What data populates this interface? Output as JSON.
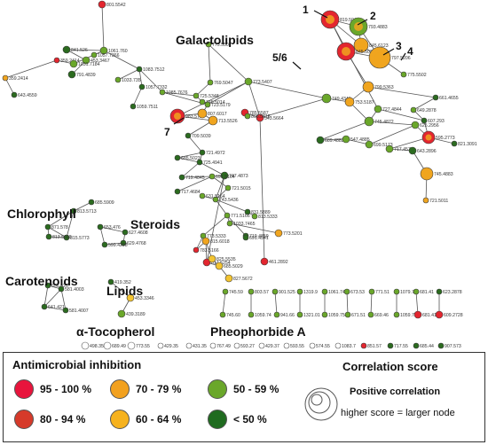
{
  "groups": {
    "galactolipids": "Galactolipids",
    "chlorophyll": "Chlorophyll",
    "steroids": "Steroids",
    "carotenoids": "Carotenoids",
    "lipids": "Lipids",
    "tocopherol": "α-Tocopherol",
    "pheophorbide": "Pheophorbide A"
  },
  "callouts": [
    "1",
    "2",
    "3",
    "4",
    "5/6",
    "7"
  ],
  "nodes": [
    {
      "label": "801.5542",
      "cls": "red"
    },
    {
      "label": "841.526",
      "cls": "dgreen"
    },
    {
      "label": "359.2414",
      "cls": "red"
    },
    {
      "label": "1061.760",
      "cls": "green"
    },
    {
      "label": "1057.7366",
      "cls": "green"
    },
    {
      "label": "453.3467",
      "cls": "green"
    },
    {
      "label": "1031.7184",
      "cls": "green"
    },
    {
      "label": "791.4839",
      "cls": "dgreen"
    },
    {
      "label": "1083.7512",
      "cls": "dgreen"
    },
    {
      "label": "1033.735",
      "cls": "green"
    },
    {
      "label": "359.2414",
      "cls": "orange"
    },
    {
      "label": "643.4559",
      "cls": "dgreen"
    },
    {
      "label": "1057.7332",
      "cls": "dgreen"
    },
    {
      "label": "1059.7511",
      "cls": "dgreen"
    },
    {
      "label": "775.5501",
      "cls": "green"
    },
    {
      "label": "769.5047",
      "cls": "green"
    },
    {
      "label": "1085.7676",
      "cls": "green"
    },
    {
      "label": "725.5348",
      "cls": "green"
    },
    {
      "label": "745.5014",
      "cls": "green"
    },
    {
      "label": "723.5179",
      "cls": "green"
    },
    {
      "label": "773.5407",
      "cls": "green"
    },
    {
      "label": "983.576",
      "cls": "red"
    },
    {
      "label": "807.6017",
      "cls": "orange"
    },
    {
      "label": "713.5526",
      "cls": "orange"
    },
    {
      "label": "709.5039",
      "cls": "dgreen"
    },
    {
      "label": "543.5664",
      "cls": "red"
    },
    {
      "label": "785.5587",
      "cls": "red"
    },
    {
      "label": "805.5815",
      "cls": "green"
    },
    {
      "label": "721.4972",
      "cls": "dgreen"
    },
    {
      "label": "685.5023",
      "cls": "dgreen"
    },
    {
      "label": "725.4941",
      "cls": "dgreen"
    },
    {
      "label": "747.4873",
      "cls": "dgreen"
    },
    {
      "label": "719.4845",
      "cls": "dgreen"
    },
    {
      "label": "691.5164",
      "cls": "green"
    },
    {
      "label": "721.5015",
      "cls": "green"
    },
    {
      "label": "717.4684",
      "cls": "dgreen"
    },
    {
      "label": "743.5436",
      "cls": "green"
    },
    {
      "label": "631.5164",
      "cls": "green"
    },
    {
      "label": "831.5889",
      "cls": "dgreen"
    },
    {
      "label": "813.5333",
      "cls": "green"
    },
    {
      "label": "771.5166",
      "cls": "green"
    },
    {
      "label": "1033.7465",
      "cls": "green"
    },
    {
      "label": "461.2892",
      "cls": "red"
    },
    {
      "label": "773.5201",
      "cls": "orange"
    },
    {
      "label": "719.4859",
      "cls": "dgreen"
    },
    {
      "label": "773.5333",
      "cls": "green"
    },
    {
      "label": "783.5166",
      "cls": "red"
    },
    {
      "label": "815.6018",
      "cls": "orange"
    },
    {
      "label": "817.5254",
      "cls": "red"
    },
    {
      "label": "825.5535",
      "cls": "yellow"
    },
    {
      "label": "685.5029",
      "cls": "yellow"
    },
    {
      "label": "827.5672",
      "cls": "yellow"
    },
    {
      "label": "691.4541",
      "cls": "dgreen"
    },
    {
      "label": "819.5049",
      "cls": "red"
    },
    {
      "label": "793.4883",
      "cls": "green"
    },
    {
      "label": "845.6123",
      "cls": "orange"
    },
    {
      "label": "845.5033",
      "cls": "red"
    },
    {
      "label": "797.5206",
      "cls": "orange"
    },
    {
      "label": "775.5502",
      "cls": "green"
    },
    {
      "label": "799.5363",
      "cls": "orange"
    },
    {
      "label": "661.4655",
      "cls": "dgreen"
    },
    {
      "label": "749.4341",
      "cls": "green"
    },
    {
      "label": "753.5187",
      "cls": "orange"
    },
    {
      "label": "745.4872",
      "cls": "green"
    },
    {
      "label": "727.4844",
      "cls": "green"
    },
    {
      "label": "649.2878",
      "cls": "green"
    },
    {
      "label": "607.293",
      "cls": "dgreen"
    },
    {
      "label": "625.2956",
      "cls": "green"
    },
    {
      "label": "595.2773",
      "cls": "red"
    },
    {
      "label": "821.3091",
      "cls": "dgreen"
    },
    {
      "label": "717.4574",
      "cls": "green"
    },
    {
      "label": "643.2896",
      "cls": "dgreen"
    },
    {
      "label": "745.4883",
      "cls": "orange"
    },
    {
      "label": "721.5011",
      "cls": "orange"
    },
    {
      "label": "689.4882",
      "cls": "dgreen"
    },
    {
      "label": "547.4885",
      "cls": "green"
    },
    {
      "label": "699.5173",
      "cls": "green"
    },
    {
      "label": "685.5909",
      "cls": "dgreen"
    },
    {
      "label": "813.5713",
      "cls": "dgreen"
    },
    {
      "label": "815.5773",
      "cls": "dgreen"
    },
    {
      "label": "871.578",
      "cls": "dgreen"
    },
    {
      "label": "813.5698",
      "cls": "dgreen"
    },
    {
      "label": "653.476",
      "cls": "dgreen"
    },
    {
      "label": "627.4608",
      "cls": "dgreen"
    },
    {
      "label": "629.4768",
      "cls": "dgreen"
    },
    {
      "label": "599.4298",
      "cls": "dgreen"
    },
    {
      "label": "656.425",
      "cls": "dgreen"
    },
    {
      "label": "581.4003",
      "cls": "dgreen"
    },
    {
      "label": "641.421",
      "cls": "dgreen"
    },
    {
      "label": "581.4007",
      "cls": "dgreen"
    },
    {
      "label": "419.352",
      "cls": "dgreen"
    },
    {
      "label": "453.3346",
      "cls": "yellow"
    },
    {
      "label": "439.3189",
      "cls": "green"
    },
    {
      "label": "745.59",
      "cls": "green"
    },
    {
      "label": "803.57",
      "cls": "green"
    },
    {
      "label": "901.525",
      "cls": "green"
    },
    {
      "label": "1319.9",
      "cls": "green"
    },
    {
      "label": "1061.74",
      "cls": "green"
    },
    {
      "label": "673.53",
      "cls": "green"
    },
    {
      "label": "771.51",
      "cls": "green"
    },
    {
      "label": "1079.72",
      "cls": "green"
    },
    {
      "label": "681.41",
      "cls": "green"
    },
    {
      "label": "623.2878",
      "cls": "dgreen"
    },
    {
      "label": "745.60",
      "cls": "green"
    },
    {
      "label": "1059.74",
      "cls": "green"
    },
    {
      "label": "941.66",
      "cls": "green"
    },
    {
      "label": "1321.01",
      "cls": "green"
    },
    {
      "label": "1059.75",
      "cls": "green"
    },
    {
      "label": "671.51",
      "cls": "green"
    },
    {
      "label": "669.46",
      "cls": "green"
    },
    {
      "label": "1059.75",
      "cls": "green"
    },
    {
      "label": "681.41",
      "cls": "red"
    },
    {
      "label": "609.2728",
      "cls": "red"
    },
    {
      "label": "498.35",
      "cls": "white"
    },
    {
      "label": "689.49",
      "cls": "white"
    },
    {
      "label": "773.55",
      "cls": "white"
    },
    {
      "label": "429.35",
      "cls": "white"
    },
    {
      "label": "431.35",
      "cls": "white"
    },
    {
      "label": "767.49",
      "cls": "white"
    },
    {
      "label": "593.27",
      "cls": "white"
    },
    {
      "label": "429.37",
      "cls": "white"
    },
    {
      "label": "593.55",
      "cls": "white"
    },
    {
      "label": "574.55",
      "cls": "white"
    },
    {
      "label": "1083.7",
      "cls": "white"
    },
    {
      "label": "851.57",
      "cls": "red"
    },
    {
      "label": "717.55",
      "cls": "dgreen"
    },
    {
      "label": "685.44",
      "cls": "dgreen"
    },
    {
      "label": "907.573",
      "cls": "dgreen"
    }
  ],
  "legend": {
    "title": "Antimicrobial inhibition",
    "items": [
      {
        "label": "95 - 100 %",
        "color": "#e8143c"
      },
      {
        "label": "80 - 94 %",
        "color": "#d63a2a"
      },
      {
        "label": "70 - 79 %",
        "color": "#f2a11f"
      },
      {
        "label": "60 - 64 %",
        "color": "#f6b21e"
      },
      {
        "label": "50 - 59 %",
        "color": "#6aa72a"
      },
      {
        "label": "< 50 %",
        "color": "#1f6b1f"
      }
    ],
    "correlation_title": "Correlation score",
    "positive_label": "Positive correlation",
    "higher_label": "higher score = larger node"
  },
  "colors": {
    "red": "#e3262f",
    "orange": "#f0a51f",
    "yellow": "#f3c431",
    "green": "#6aa72a",
    "dgreen": "#2b6b1f",
    "white": "#ffffff",
    "edge": "#555555"
  }
}
